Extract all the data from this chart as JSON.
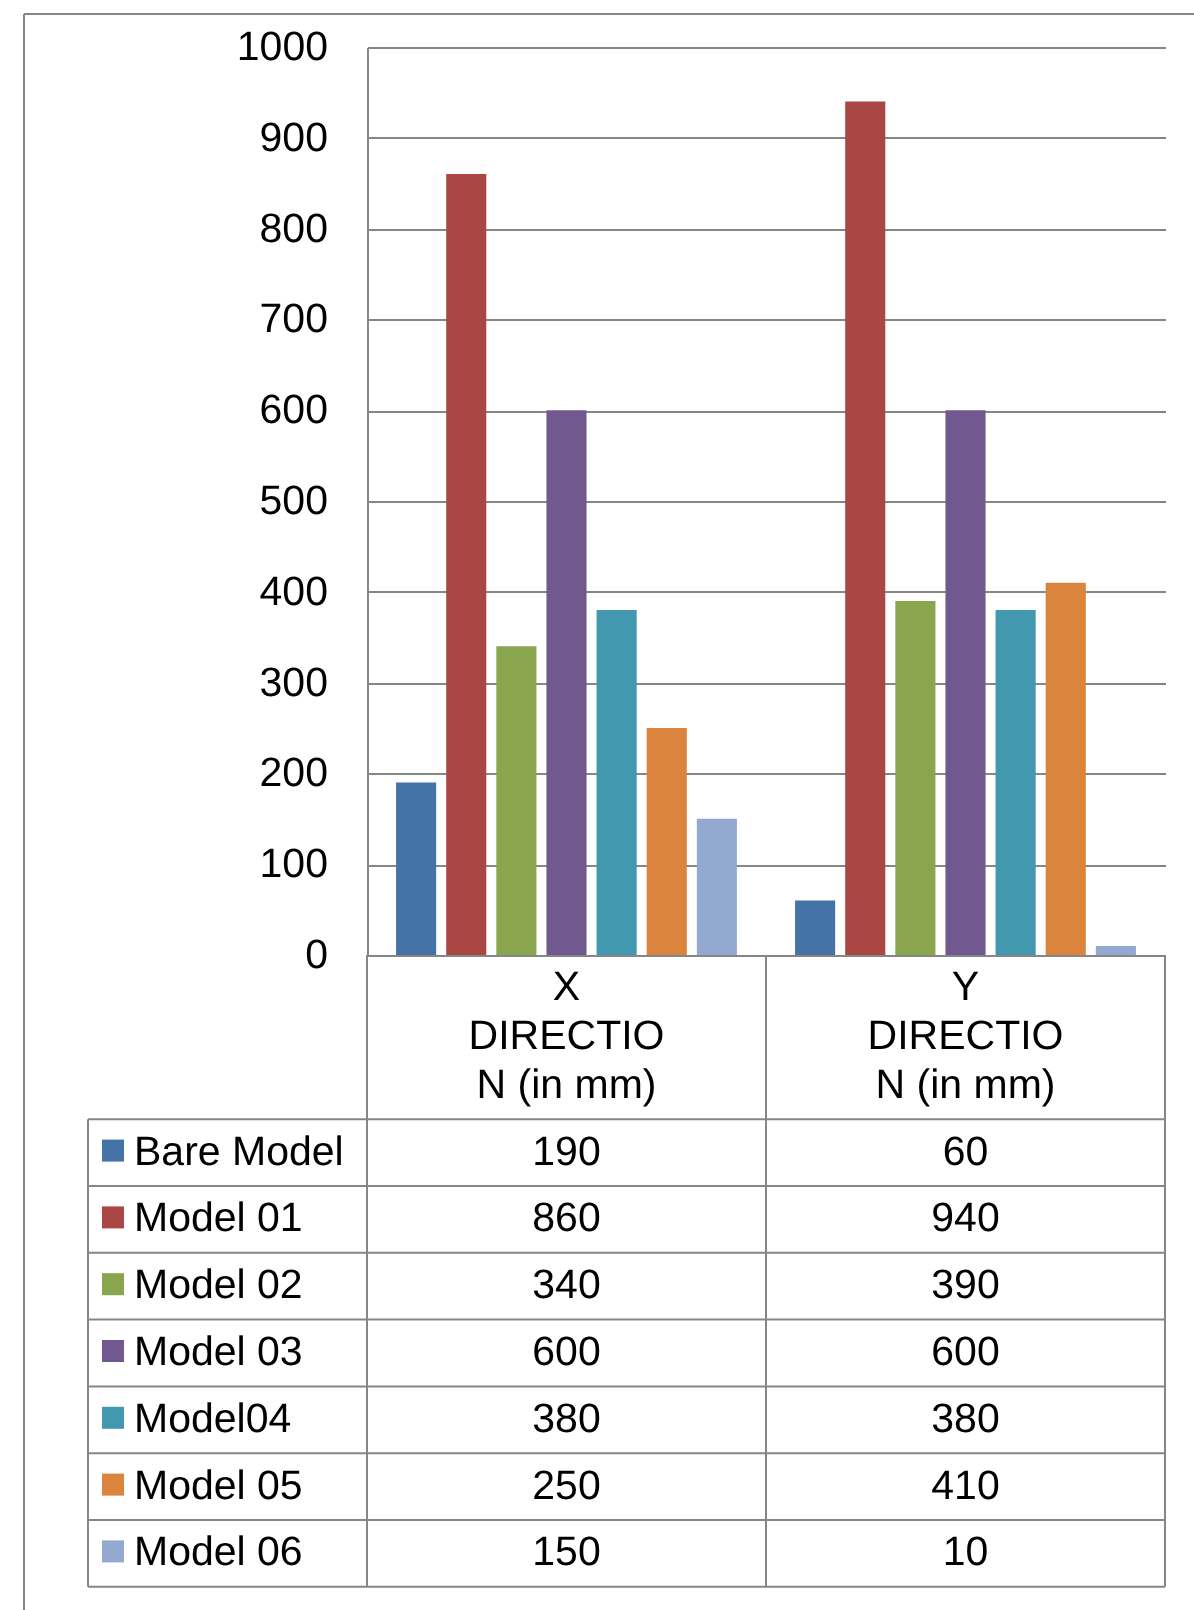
{
  "chart_data": {
    "type": "bar",
    "categories": [
      "X DIRECTION (in mm)",
      "Y DIRECTION (in mm)"
    ],
    "series": [
      {
        "name": "Bare Model",
        "color": "#4572a7",
        "values": [
          190,
          60
        ]
      },
      {
        "name": "Model 01",
        "color": "#aa4643",
        "values": [
          860,
          940
        ]
      },
      {
        "name": "Model 02",
        "color": "#89a54e",
        "values": [
          340,
          390
        ]
      },
      {
        "name": "Model 03",
        "color": "#71588f",
        "values": [
          600,
          600
        ]
      },
      {
        "name": "Model04",
        "color": "#4198af",
        "values": [
          380,
          380
        ]
      },
      {
        "name": "Model 05",
        "color": "#db843d",
        "values": [
          250,
          410
        ]
      },
      {
        "name": "Model 06",
        "color": "#93a9cf",
        "values": [
          150,
          10
        ]
      }
    ],
    "ylim": [
      0,
      1000
    ],
    "yticks": [
      0,
      100,
      200,
      300,
      400,
      500,
      600,
      700,
      800,
      900,
      1000
    ],
    "grid": "y",
    "legend": "bottom",
    "data_labels": true
  }
}
